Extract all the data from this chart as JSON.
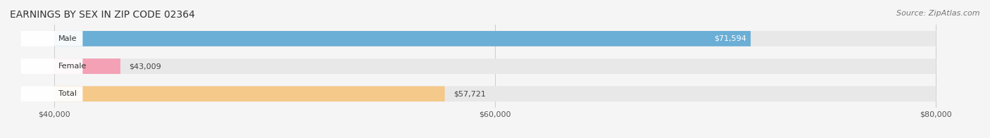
{
  "title": "EARNINGS BY SEX IN ZIP CODE 02364",
  "source_text": "Source: ZipAtlas.com",
  "categories": [
    "Male",
    "Female",
    "Total"
  ],
  "values": [
    71594,
    43009,
    57721
  ],
  "bar_colors": [
    "#6baed6",
    "#f4a0b5",
    "#f5c98a"
  ],
  "label_colors": [
    "white",
    "#555555",
    "#555555"
  ],
  "label_positions": [
    "inside_right",
    "outside_right",
    "outside_right"
  ],
  "value_labels": [
    "$71,594",
    "$43,009",
    "$57,721"
  ],
  "xlim_min": 40000,
  "xlim_max": 80000,
  "xticks": [
    40000,
    60000,
    80000
  ],
  "xtick_labels": [
    "$40,000",
    "$60,000",
    "$80,000"
  ],
  "background_color": "#f5f5f5",
  "bar_background_color": "#e8e8e8",
  "bar_height": 0.55,
  "title_fontsize": 10,
  "label_fontsize": 8,
  "value_fontsize": 8,
  "tick_fontsize": 8,
  "source_fontsize": 8
}
